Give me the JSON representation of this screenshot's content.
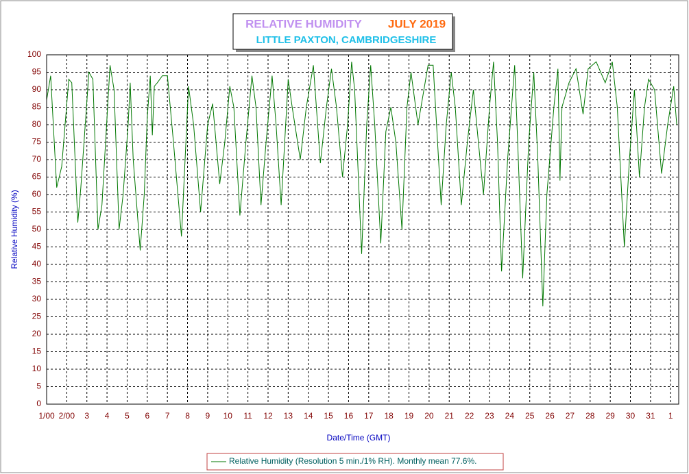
{
  "chart_data": {
    "type": "line",
    "title": "RELATIVE HUMIDITY",
    "period": "JULY 2019",
    "subtitle": "LITTLE PAXTON, CAMBRIDGESHIRE",
    "xlabel": "Date/Time (GMT)",
    "ylabel": "Relative Humidity (%)",
    "xlim": [
      1,
      32.4
    ],
    "ylim": [
      0,
      100
    ],
    "xticks": [
      {
        "value": 1,
        "label": "1/00"
      },
      {
        "value": 2,
        "label": "2/00"
      },
      3,
      4,
      5,
      6,
      7,
      8,
      9,
      10,
      11,
      12,
      13,
      14,
      15,
      16,
      17,
      18,
      19,
      20,
      21,
      22,
      23,
      24,
      25,
      26,
      27,
      28,
      29,
      30,
      31,
      {
        "value": 32,
        "label": "1"
      }
    ],
    "yticks": [
      0,
      5,
      10,
      15,
      20,
      25,
      30,
      35,
      40,
      45,
      50,
      55,
      60,
      65,
      70,
      75,
      80,
      85,
      90,
      95,
      100
    ],
    "grid": true,
    "x": [
      1.0,
      1.2,
      1.5,
      1.75,
      2.1,
      2.25,
      2.55,
      2.7,
      3.1,
      3.3,
      3.55,
      3.75,
      4.15,
      4.35,
      4.6,
      4.8,
      5.05,
      5.15,
      5.3,
      5.65,
      5.85,
      6.0,
      6.15,
      6.25,
      6.35,
      6.5,
      6.75,
      7.0,
      7.3,
      7.7,
      8.05,
      8.3,
      8.65,
      9.0,
      9.25,
      9.6,
      9.85,
      10.1,
      10.3,
      10.6,
      10.9,
      11.2,
      11.4,
      11.65,
      11.9,
      12.2,
      12.4,
      12.65,
      13.0,
      13.2,
      13.6,
      13.9,
      14.25,
      14.6,
      14.9,
      15.15,
      15.4,
      15.7,
      15.95,
      16.15,
      16.3,
      16.65,
      16.9,
      17.1,
      17.3,
      17.6,
      17.85,
      18.1,
      18.35,
      18.65,
      18.9,
      19.1,
      19.45,
      19.95,
      20.2,
      20.6,
      20.85,
      21.1,
      21.3,
      21.6,
      21.9,
      22.2,
      22.45,
      22.7,
      23.0,
      23.2,
      23.4,
      23.6,
      23.9,
      24.25,
      24.4,
      24.65,
      24.95,
      25.2,
      25.4,
      25.65,
      25.85,
      26.2,
      26.4,
      26.5,
      26.6,
      26.95,
      27.3,
      27.65,
      27.9,
      28.3,
      28.75,
      29.1,
      29.35,
      29.7,
      29.95,
      30.2,
      30.45,
      30.7,
      30.9,
      31.2,
      31.55,
      31.85,
      32.15,
      32.3
    ],
    "series": [
      {
        "name": "Relative Humidity (Resolution 5 min./1% RH). Monthly mean 77.6%.",
        "color": "#007700",
        "values": [
          87,
          94,
          62,
          68,
          93,
          92,
          52,
          62,
          95,
          93,
          50,
          57,
          97,
          90,
          50,
          60,
          80,
          92,
          70,
          44,
          60,
          82,
          94,
          77,
          91,
          92,
          94,
          94,
          75,
          48,
          91,
          80,
          55,
          80,
          86,
          63,
          75,
          91,
          85,
          54,
          75,
          94,
          85,
          57,
          75,
          94,
          80,
          57,
          93,
          85,
          70,
          85,
          97,
          69,
          85,
          96,
          85,
          65,
          80,
          98,
          90,
          43,
          80,
          97,
          80,
          46,
          78,
          85,
          75,
          50,
          85,
          95,
          80,
          97,
          97,
          57,
          80,
          95,
          85,
          57,
          75,
          90,
          75,
          60,
          85,
          98,
          75,
          38,
          70,
          97,
          75,
          36,
          75,
          95,
          70,
          28,
          60,
          85,
          96,
          64,
          85,
          92,
          96,
          83,
          96,
          98,
          92,
          98,
          85,
          45,
          70,
          90,
          65,
          85,
          93,
          90,
          66,
          80,
          91,
          80
        ]
      }
    ]
  }
}
